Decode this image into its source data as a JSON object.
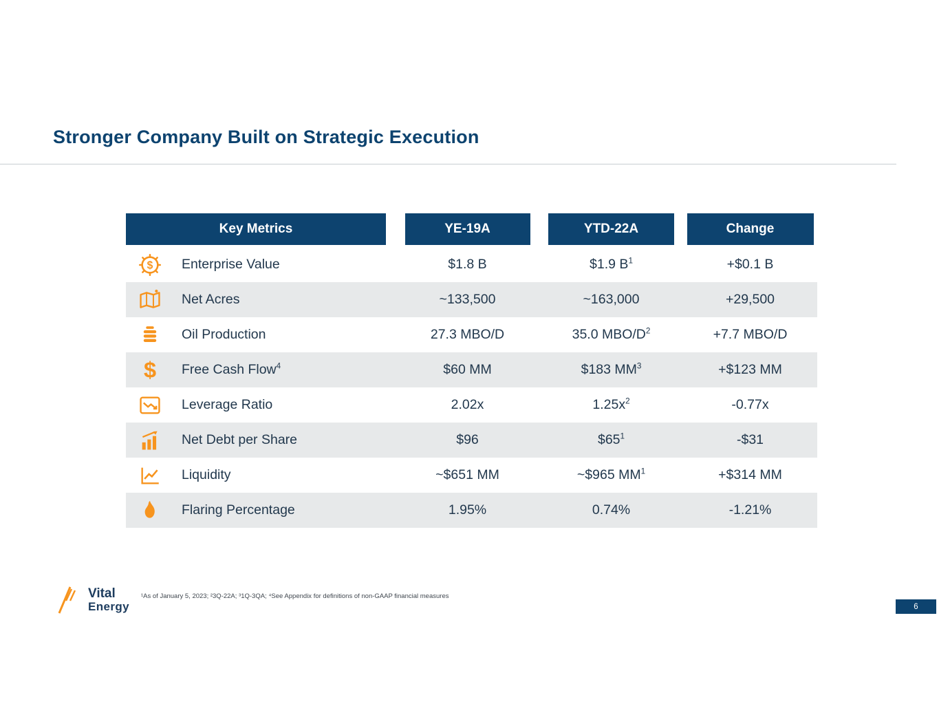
{
  "slide": {
    "title": "Stronger Company Built on Strategic Execution",
    "page_number": "6",
    "footnote": "¹As of January 5, 2023; ²3Q-22A; ³1Q-3QA; ⁴See Appendix for definitions of non-GAAP financial measures",
    "logo": {
      "line1": "Vital",
      "line2": "Energy"
    }
  },
  "colors": {
    "navy": "#0d436f",
    "orange": "#F7941E",
    "row_shade": "#e7e9ea",
    "text": "#22384d"
  },
  "table": {
    "headers": [
      "Key Metrics",
      "YE-19A",
      "YTD-22A",
      "Change"
    ],
    "rows": [
      {
        "icon": "badge-dollar-icon",
        "metric": {
          "text": "Enterprise Value",
          "sup": ""
        },
        "values": [
          {
            "text": "$1.8 B",
            "sup": ""
          },
          {
            "text": "$1.9 B",
            "sup": "1"
          },
          {
            "text": "+$0.1 B",
            "sup": ""
          }
        ],
        "shaded": false
      },
      {
        "icon": "map-icon",
        "metric": {
          "text": "Net Acres",
          "sup": ""
        },
        "values": [
          {
            "text": "~133,500",
            "sup": ""
          },
          {
            "text": "~163,000",
            "sup": ""
          },
          {
            "text": "+29,500",
            "sup": ""
          }
        ],
        "shaded": true
      },
      {
        "icon": "oil-barrel-icon",
        "metric": {
          "text": "Oil Production",
          "sup": ""
        },
        "values": [
          {
            "text": "27.3 MBO/D",
            "sup": ""
          },
          {
            "text": "35.0 MBO/D",
            "sup": "2"
          },
          {
            "text": "+7.7 MBO/D",
            "sup": ""
          }
        ],
        "shaded": false
      },
      {
        "icon": "dollar-icon",
        "metric": {
          "text": "Free Cash Flow",
          "sup": "4"
        },
        "values": [
          {
            "text": "$60 MM",
            "sup": ""
          },
          {
            "text": "$183 MM",
            "sup": "3"
          },
          {
            "text": "+$123 MM",
            "sup": ""
          }
        ],
        "shaded": true
      },
      {
        "icon": "chart-down-icon",
        "metric": {
          "text": "Leverage Ratio",
          "sup": ""
        },
        "values": [
          {
            "text": "2.02x",
            "sup": ""
          },
          {
            "text": "1.25x",
            "sup": "2"
          },
          {
            "text": "-0.77x",
            "sup": ""
          }
        ],
        "shaded": false
      },
      {
        "icon": "bar-chart-icon",
        "metric": {
          "text": "Net Debt per Share",
          "sup": ""
        },
        "values": [
          {
            "text": "$96",
            "sup": ""
          },
          {
            "text": "$65",
            "sup": "1"
          },
          {
            "text": "-$31",
            "sup": ""
          }
        ],
        "shaded": true
      },
      {
        "icon": "line-chart-icon",
        "metric": {
          "text": "Liquidity",
          "sup": ""
        },
        "values": [
          {
            "text": "~$651 MM",
            "sup": ""
          },
          {
            "text": "~$965 MM",
            "sup": "1"
          },
          {
            "text": "+$314 MM",
            "sup": ""
          }
        ],
        "shaded": false
      },
      {
        "icon": "flame-icon",
        "metric": {
          "text": "Flaring Percentage",
          "sup": ""
        },
        "values": [
          {
            "text": "1.95%",
            "sup": ""
          },
          {
            "text": "0.74%",
            "sup": ""
          },
          {
            "text": "-1.21%",
            "sup": ""
          }
        ],
        "shaded": true
      }
    ]
  }
}
